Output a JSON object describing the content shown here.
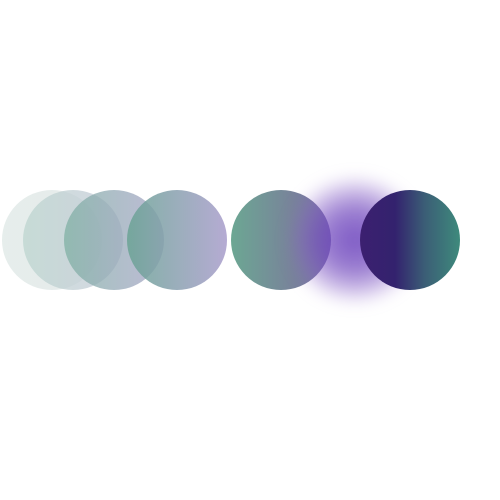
{
  "scene": {
    "background_color": "#ffffff",
    "shape": "circle",
    "colors": {
      "teal": "#3e8a7c",
      "light_teal": "#6ca793",
      "lavender": "#a89ccb",
      "purple": "#6e46be",
      "deep_purple": "#33226e"
    },
    "circles": [
      {
        "name": "faded-circle-1",
        "opacity": 0.65
      },
      {
        "name": "faded-circle-2",
        "opacity": 0.75
      },
      {
        "name": "faded-circle-3",
        "opacity": 0.75
      },
      {
        "name": "faded-circle-4",
        "opacity": 0.85
      },
      {
        "name": "solid-circle",
        "opacity": 1
      },
      {
        "name": "blurred-glow",
        "opacity": 0.9
      },
      {
        "name": "dark-circle",
        "opacity": 1
      }
    ]
  }
}
